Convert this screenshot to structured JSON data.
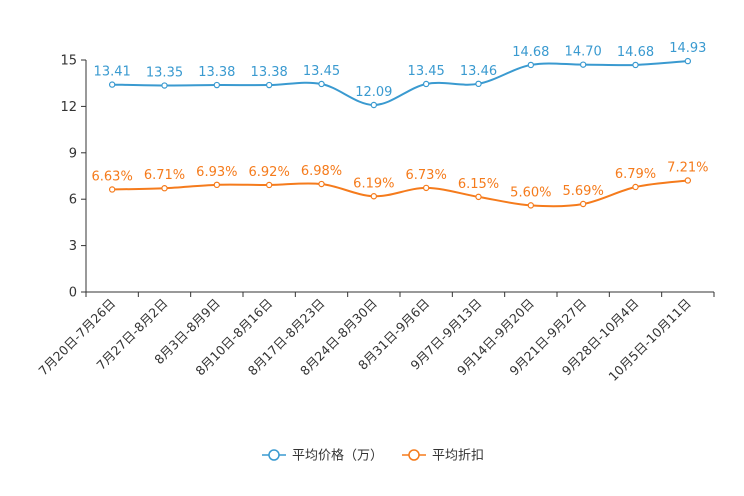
{
  "chart_data": {
    "type": "line",
    "categories": [
      "7月20日-7月26日",
      "7月27日-8月2日",
      "8月3日-8月9日",
      "8月10日-8月16日",
      "8月17日-8月23日",
      "8月24日-8月30日",
      "8月31日-9月6日",
      "9月7日-9月13日",
      "9月14日-9月20日",
      "9月21日-9月27日",
      "9月28日-10月4日",
      "10月5日-10月11日"
    ],
    "ylim": [
      0,
      15
    ],
    "yticks": [
      0,
      3,
      6,
      9,
      12,
      15
    ],
    "series": [
      {
        "name": "平均价格（万）",
        "color": "#3a9ad0",
        "values": [
          13.41,
          13.35,
          13.38,
          13.38,
          13.45,
          12.09,
          13.45,
          13.46,
          14.68,
          14.7,
          14.68,
          14.93
        ],
        "labels": [
          "13.41",
          "13.35",
          "13.38",
          "13.38",
          "13.45",
          "12.09",
          "13.45",
          "13.46",
          "14.68",
          "14.70",
          "14.68",
          "14.93"
        ]
      },
      {
        "name": "平均折扣",
        "color": "#f57b1c",
        "values": [
          6.63,
          6.71,
          6.93,
          6.92,
          6.98,
          6.19,
          6.73,
          6.15,
          5.6,
          5.69,
          6.79,
          7.21
        ],
        "labels": [
          "6.63%",
          "6.71%",
          "6.93%",
          "6.92%",
          "6.98%",
          "6.19%",
          "6.73%",
          "6.15%",
          "5.60%",
          "5.69%",
          "6.79%",
          "7.21%"
        ]
      }
    ],
    "legend_position": "bottom-center"
  }
}
